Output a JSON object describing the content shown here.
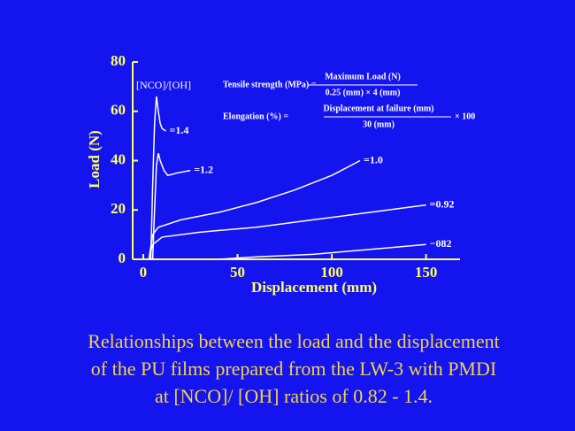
{
  "chart_data": {
    "type": "line",
    "xlabel": "Displacement (mm)",
    "ylabel": "Load (N)",
    "annotation": "[NCO]/[OH]",
    "xlim": [
      -5.6,
      168
    ],
    "xticks": [
      0,
      50,
      100,
      150
    ],
    "ylim": [
      0,
      80
    ],
    "yticks": [
      0,
      20,
      40,
      60,
      80
    ],
    "axis_color": "#ffff66",
    "background": "#1414ee",
    "series": [
      {
        "name": "=1.4",
        "color": "#ffffff",
        "x": [
          4,
          5,
          6,
          7,
          8,
          9,
          10,
          12
        ],
        "values": [
          0,
          30,
          55,
          66,
          60,
          55,
          53,
          52
        ]
      },
      {
        "name": "=1.2",
        "color": "#ffffff",
        "x": [
          5,
          6,
          7,
          8,
          9,
          11,
          13,
          18,
          25
        ],
        "values": [
          0,
          20,
          38,
          43,
          40,
          36,
          34,
          35,
          36
        ]
      },
      {
        "name": "=1.0",
        "color": "#ffffff",
        "x": [
          3,
          5,
          8,
          20,
          40,
          60,
          80,
          100,
          115
        ],
        "values": [
          0,
          10,
          13,
          16,
          19,
          23,
          28,
          34,
          40
        ]
      },
      {
        "name": "=0.92",
        "color": "#ffffff",
        "x": [
          3,
          5,
          10,
          30,
          60,
          90,
          120,
          150
        ],
        "values": [
          0,
          6,
          9,
          11,
          13,
          16,
          19,
          22
        ]
      },
      {
        "name": "−082",
        "color": "#ffffff",
        "x": [
          40,
          60,
          90,
          120,
          150
        ],
        "values": [
          0,
          1,
          2,
          4,
          6
        ]
      }
    ],
    "formulas": [
      {
        "label": "Tensile strength (MPa) =",
        "numerator": "Maximum Load (N)",
        "denominator": "0.25 (mm) × 4 (mm)"
      },
      {
        "label": "Elongation (%) =",
        "numerator": "Displacement at failure (mm)",
        "denominator": "30 (mm)",
        "suffix": "× 100"
      }
    ],
    "caption": [
      "Relationships between the load and the displacement",
      "of the PU films prepared from the LW-3 with PMDI",
      "at [NCO]/ [OH] ratios of 0.82 - 1.4."
    ]
  }
}
